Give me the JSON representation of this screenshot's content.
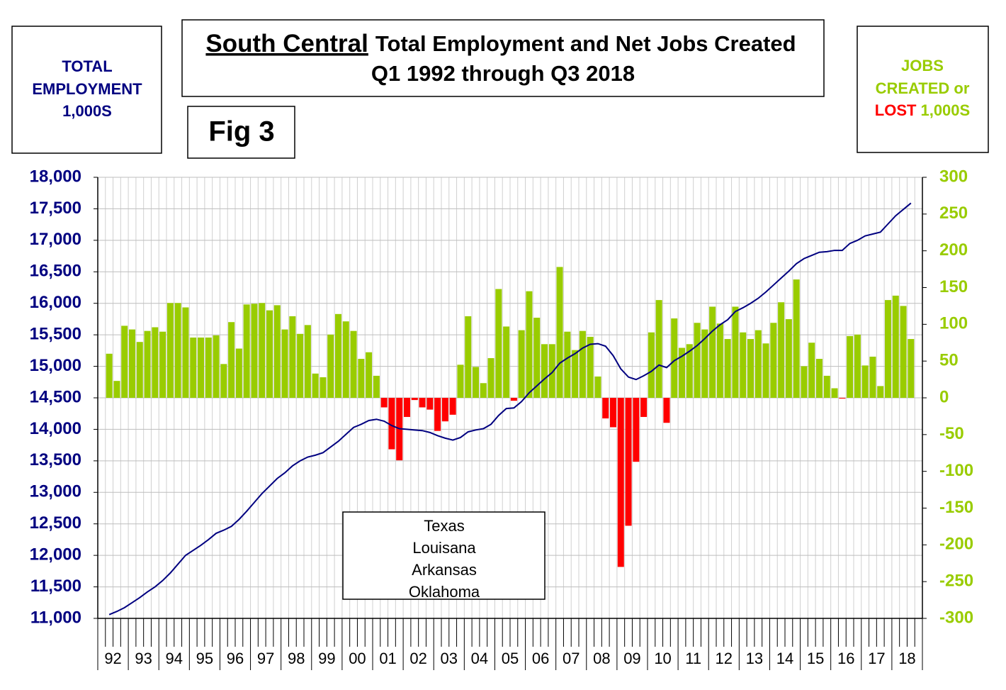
{
  "chart_data": {
    "type": "bar",
    "title_main": "South Central",
    "title_rest": "Total Employment and Net Jobs Created",
    "subtitle": "Q1 1992 through Q3 2018",
    "figure_label": "Fig 3",
    "left_axis_label": [
      "TOTAL",
      "EMPLOYMENT",
      "1,000S"
    ],
    "right_axis_label": {
      "line1": "JOBS",
      "line2": "CREATED or",
      "line3a": "LOST",
      "line3b": "1,000S"
    },
    "right_axis_color": "#99cc00",
    "left_axis_color": "#000080",
    "lost_color": "#ff0000",
    "states": [
      "Texas",
      "Louisana",
      "Arkansas",
      "Oklahoma"
    ],
    "year_labels": [
      "92",
      "93",
      "94",
      "95",
      "96",
      "97",
      "98",
      "99",
      "00",
      "01",
      "02",
      "03",
      "04",
      "05",
      "06",
      "07",
      "08",
      "09",
      "10",
      "11",
      "12",
      "13",
      "14",
      "15",
      "16",
      "17",
      "18"
    ],
    "ylim": [
      11000,
      18000
    ],
    "yticks": [
      {
        "value": 11000,
        "label": "11,000"
      },
      {
        "value": 11500,
        "label": "11,500"
      },
      {
        "value": 12000,
        "label": "12,000"
      },
      {
        "value": 12500,
        "label": "12,500"
      },
      {
        "value": 13000,
        "label": "13,000"
      },
      {
        "value": 13500,
        "label": "13,500"
      },
      {
        "value": 14000,
        "label": "14,000"
      },
      {
        "value": 14500,
        "label": "14,500"
      },
      {
        "value": 15000,
        "label": "15,000"
      },
      {
        "value": 15500,
        "label": "15,500"
      },
      {
        "value": 16000,
        "label": "16,000"
      },
      {
        "value": 16500,
        "label": "16,500"
      },
      {
        "value": 17000,
        "label": "17,000"
      },
      {
        "value": 17500,
        "label": "17,500"
      },
      {
        "value": 18000,
        "label": "18,000"
      }
    ],
    "y2lim": [
      -300,
      300
    ],
    "y2ticks": [
      -300,
      -250,
      -200,
      -150,
      -100,
      -50,
      0,
      50,
      100,
      150,
      200,
      250,
      300
    ],
    "grid": true,
    "series": [
      {
        "type": "bar",
        "axis": "y2",
        "color": "#99cc00",
        "negative_color": "#ff0000",
        "values": [
          60,
          23,
          98,
          93,
          76,
          91,
          96,
          90,
          129,
          129,
          123,
          82,
          82,
          82,
          85,
          46,
          103,
          67,
          127,
          128,
          129,
          119,
          126,
          93,
          111,
          87,
          99,
          33,
          28,
          86,
          114,
          104,
          91,
          53,
          62,
          30,
          -13,
          -70,
          -85,
          -26,
          -3,
          -13,
          -16,
          -45,
          -32,
          -23,
          45,
          111,
          42,
          20,
          54,
          148,
          97,
          -4,
          92,
          145,
          109,
          73,
          73,
          178,
          90,
          65,
          91,
          83,
          29,
          -28,
          -40,
          -230,
          -174,
          -87,
          -26,
          89,
          133,
          -34,
          108,
          68,
          73,
          102,
          93,
          124,
          101,
          80,
          124,
          89,
          80,
          92,
          74,
          102,
          130,
          107,
          161,
          43,
          75,
          53,
          30,
          13,
          -1,
          84,
          86,
          44,
          56,
          16,
          133,
          139,
          125,
          80
        ]
      },
      {
        "type": "line",
        "color": "#000080",
        "values": [
          11060,
          11110,
          11170,
          11250,
          11330,
          11420,
          11500,
          11600,
          11720,
          11860,
          12000,
          12080,
          12160,
          12250,
          12350,
          12400,
          12460,
          12570,
          12700,
          12840,
          12980,
          13100,
          13220,
          13310,
          13420,
          13500,
          13560,
          13590,
          13630,
          13720,
          13810,
          13920,
          14030,
          14080,
          14140,
          14160,
          14130,
          14060,
          14010,
          14000,
          13990,
          13980,
          13950,
          13900,
          13860,
          13830,
          13870,
          13960,
          13990,
          14010,
          14080,
          14220,
          14330,
          14340,
          14440,
          14580,
          14690,
          14800,
          14900,
          15050,
          15130,
          15200,
          15290,
          15350,
          15360,
          15320,
          15170,
          14960,
          14830,
          14790,
          14850,
          14920,
          15020,
          14980,
          15090,
          15160,
          15240,
          15330,
          15440,
          15560,
          15660,
          15740,
          15870,
          15930,
          16000,
          16080,
          16180,
          16290,
          16400,
          16510,
          16630,
          16710,
          16760,
          16810,
          16820,
          16840,
          16840,
          16950,
          17000,
          17070,
          17100,
          17130,
          17260,
          17390,
          17490,
          17590
        ]
      }
    ]
  }
}
